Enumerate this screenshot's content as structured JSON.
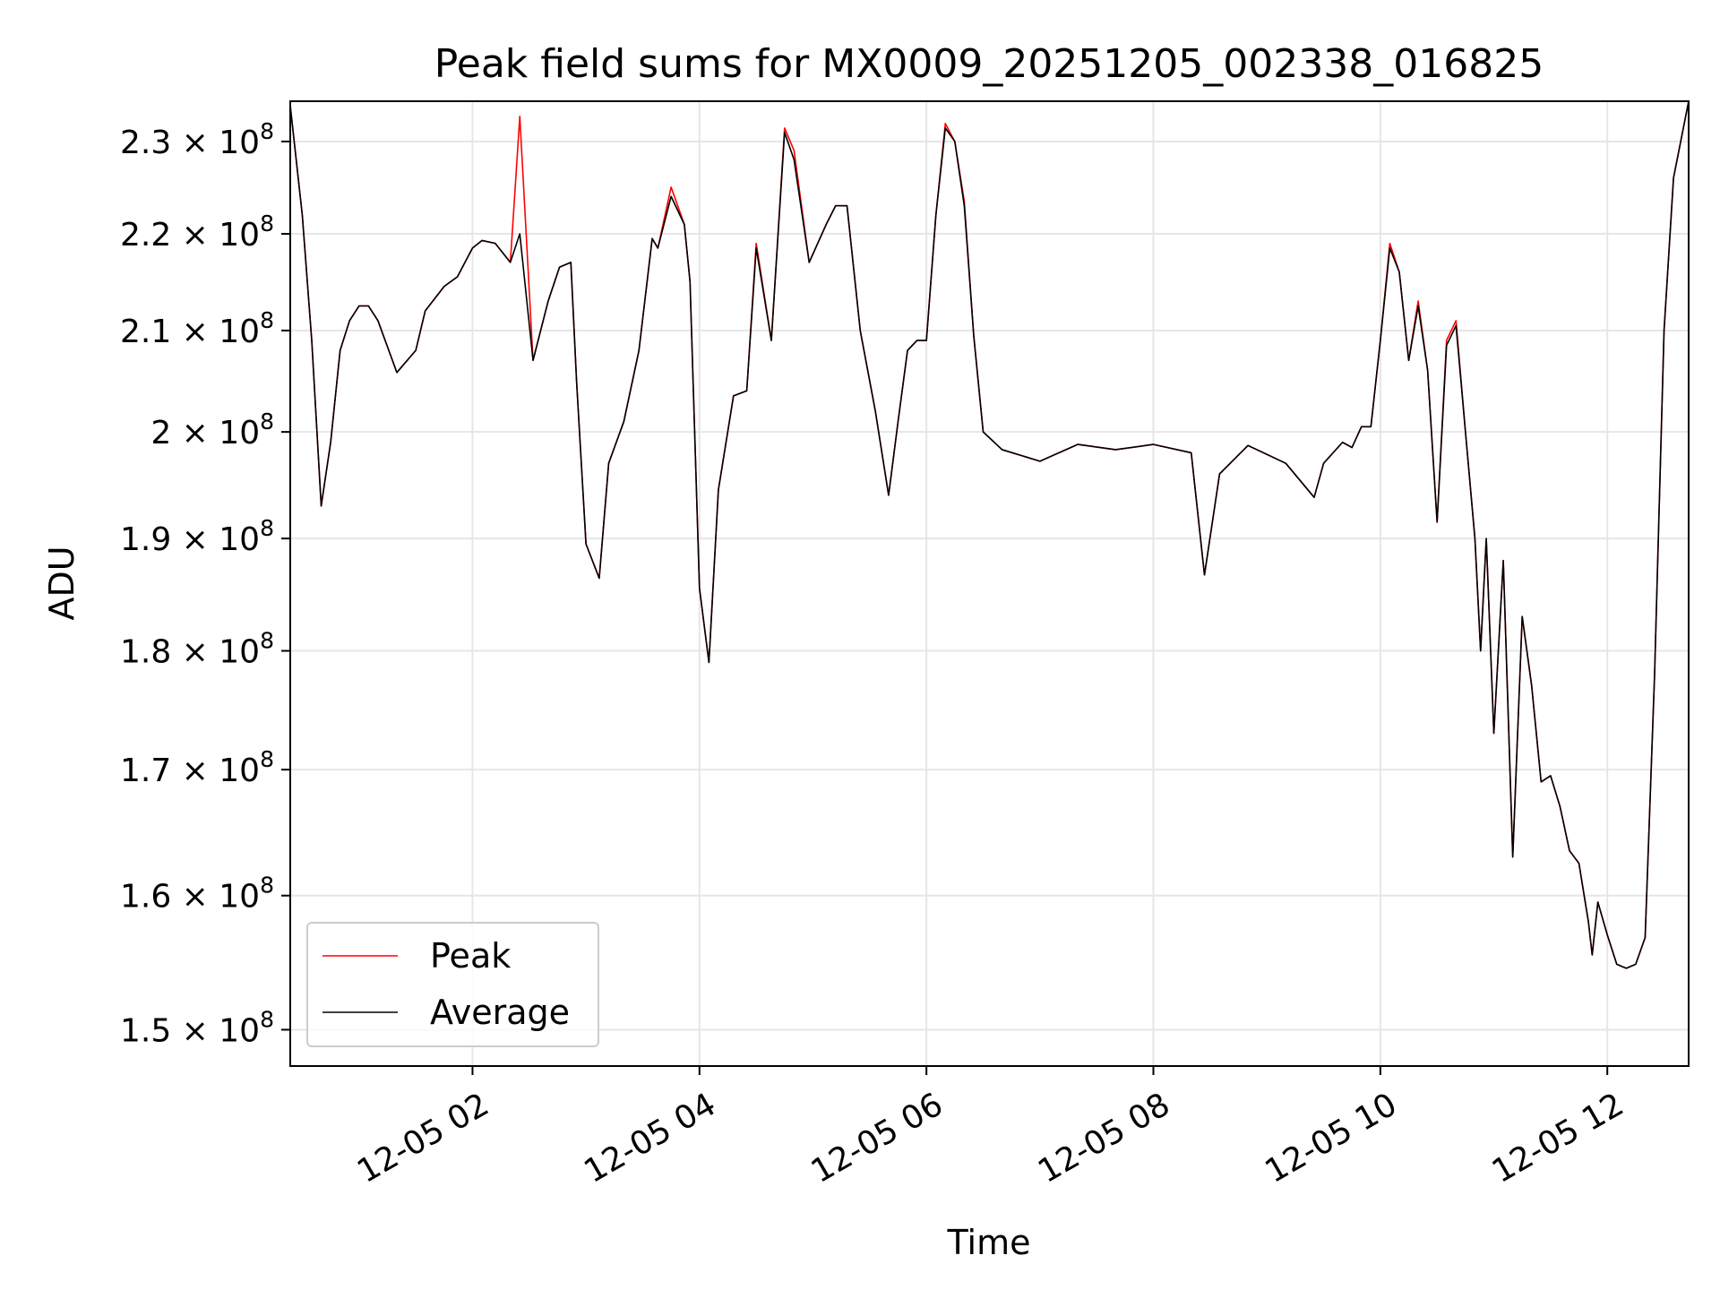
{
  "chart_data": {
    "type": "line",
    "title": "Peak field sums for MX0009_20251205_002338_016825",
    "xlabel": "Time",
    "ylabel": "ADU",
    "y_scale": "log",
    "ylim": [
      147400000.0,
      234500000.0
    ],
    "xlim": [
      "2025-12-05 00:23:38",
      "2025-12-05 12:43:00"
    ],
    "grid": true,
    "legend_position": "lower left",
    "x_ticks": [
      {
        "value": "2025-12-05 02:00",
        "label": "12-05 02"
      },
      {
        "value": "2025-12-05 04:00",
        "label": "12-05 04"
      },
      {
        "value": "2025-12-05 06:00",
        "label": "12-05 06"
      },
      {
        "value": "2025-12-05 08:00",
        "label": "12-05 08"
      },
      {
        "value": "2025-12-05 10:00",
        "label": "12-05 10"
      },
      {
        "value": "2025-12-05 12:00",
        "label": "12-05 12"
      }
    ],
    "y_ticks": [
      {
        "value": 150000000,
        "mantissa": "1.5"
      },
      {
        "value": 160000000,
        "mantissa": "1.6"
      },
      {
        "value": 170000000,
        "mantissa": "1.7"
      },
      {
        "value": 180000000,
        "mantissa": "1.8"
      },
      {
        "value": 190000000,
        "mantissa": "1.9"
      },
      {
        "value": 200000000,
        "mantissa": "2"
      },
      {
        "value": 210000000,
        "mantissa": "2.1"
      },
      {
        "value": 220000000,
        "mantissa": "2.2"
      },
      {
        "value": 230000000,
        "mantissa": "2.3"
      }
    ],
    "y_tick_base": "10",
    "y_tick_exponent": "8",
    "x": [
      "2025-12-05 00:23:38",
      "2025-12-05 00:30",
      "2025-12-05 00:35",
      "2025-12-05 00:40",
      "2025-12-05 00:45",
      "2025-12-05 00:50",
      "2025-12-05 00:55",
      "2025-12-05 01:00",
      "2025-12-05 01:05",
      "2025-12-05 01:10",
      "2025-12-05 01:20",
      "2025-12-05 01:30",
      "2025-12-05 01:35",
      "2025-12-05 01:45",
      "2025-12-05 01:52",
      "2025-12-05 02:00",
      "2025-12-05 02:05",
      "2025-12-05 02:12",
      "2025-12-05 02:20",
      "2025-12-05 02:25",
      "2025-12-05 02:32",
      "2025-12-05 02:40",
      "2025-12-05 02:46",
      "2025-12-05 02:52",
      "2025-12-05 02:55",
      "2025-12-05 03:00",
      "2025-12-05 03:07",
      "2025-12-05 03:12",
      "2025-12-05 03:20",
      "2025-12-05 03:28",
      "2025-12-05 03:35",
      "2025-12-05 03:38",
      "2025-12-05 03:45",
      "2025-12-05 03:52",
      "2025-12-05 03:55",
      "2025-12-05 04:00",
      "2025-12-05 04:05",
      "2025-12-05 04:10",
      "2025-12-05 04:18",
      "2025-12-05 04:25",
      "2025-12-05 04:30",
      "2025-12-05 04:38",
      "2025-12-05 04:45",
      "2025-12-05 04:50",
      "2025-12-05 04:58",
      "2025-12-05 05:07",
      "2025-12-05 05:12",
      "2025-12-05 05:18",
      "2025-12-05 05:25",
      "2025-12-05 05:33",
      "2025-12-05 05:40",
      "2025-12-05 05:45",
      "2025-12-05 05:50",
      "2025-12-05 05:55",
      "2025-12-05 06:00",
      "2025-12-05 06:05",
      "2025-12-05 06:10",
      "2025-12-05 06:15",
      "2025-12-05 06:20",
      "2025-12-05 06:25",
      "2025-12-05 06:30",
      "2025-12-05 06:40",
      "2025-12-05 07:00",
      "2025-12-05 07:20",
      "2025-12-05 07:40",
      "2025-12-05 08:00",
      "2025-12-05 08:20",
      "2025-12-05 08:27",
      "2025-12-05 08:35",
      "2025-12-05 08:50",
      "2025-12-05 09:10",
      "2025-12-05 09:25",
      "2025-12-05 09:30",
      "2025-12-05 09:40",
      "2025-12-05 09:45",
      "2025-12-05 09:50",
      "2025-12-05 09:55",
      "2025-12-05 10:00",
      "2025-12-05 10:05",
      "2025-12-05 10:10",
      "2025-12-05 10:15",
      "2025-12-05 10:20",
      "2025-12-05 10:25",
      "2025-12-05 10:30",
      "2025-12-05 10:35",
      "2025-12-05 10:40",
      "2025-12-05 10:45",
      "2025-12-05 10:50",
      "2025-12-05 10:53",
      "2025-12-05 10:56",
      "2025-12-05 11:00",
      "2025-12-05 11:05",
      "2025-12-05 11:10",
      "2025-12-05 11:15",
      "2025-12-05 11:20",
      "2025-12-05 11:25",
      "2025-12-05 11:30",
      "2025-12-05 11:35",
      "2025-12-05 11:40",
      "2025-12-05 11:45",
      "2025-12-05 11:50",
      "2025-12-05 11:52",
      "2025-12-05 11:55",
      "2025-12-05 12:00",
      "2025-12-05 12:05",
      "2025-12-05 12:10",
      "2025-12-05 12:15",
      "2025-12-05 12:20",
      "2025-12-05 12:25",
      "2025-12-05 12:30",
      "2025-12-05 12:35",
      "2025-12-05 12:43"
    ],
    "series": [
      {
        "name": "Peak",
        "color": "#ff0000",
        "values": [
          234000000,
          222000000,
          209000000,
          193000000,
          199000000,
          208000000,
          211000000,
          212500000,
          212500000,
          211000000,
          205800000,
          208000000,
          212000000,
          214500000,
          215500000,
          218500000,
          219300000,
          219000000,
          217000000,
          232800000,
          207000000,
          213000000,
          216500000,
          217000000,
          205000000,
          189500000,
          186400000,
          197000000,
          201000000,
          208000000,
          219500000,
          218500000,
          225000000,
          221000000,
          215000000,
          185500000,
          179000000,
          194500000,
          203500000,
          204000000,
          219000000,
          209000000,
          231500000,
          229000000,
          217000000,
          221000000,
          223000000,
          223000000,
          210000000,
          202000000,
          194000000,
          201000000,
          208000000,
          209000000,
          209000000,
          222000000,
          232000000,
          230000000,
          223500000,
          209500000,
          200000000,
          198300000,
          197200000,
          198800000,
          198300000,
          198800000,
          198000000,
          186700000,
          196000000,
          198700000,
          197000000,
          193800000,
          197000000,
          199000000,
          198500000,
          200500000,
          200500000,
          209000000,
          219000000,
          216000000,
          207000000,
          213000000,
          206000000,
          191500000,
          209000000,
          211000000,
          200000000,
          190000000,
          180000000,
          190000000,
          173000000,
          188000000,
          163000000,
          183000000,
          177000000,
          169000000,
          169500000,
          167000000,
          163500000,
          162500000,
          158000000,
          155500000,
          159500000,
          157000000,
          154800000,
          154500000,
          154800000,
          156800000,
          178000000,
          210000000,
          226000000,
          234500000
        ]
      },
      {
        "name": "Average",
        "color": "#000000",
        "values": [
          234000000,
          222000000,
          209000000,
          193000000,
          199000000,
          208000000,
          211000000,
          212500000,
          212500000,
          211000000,
          205800000,
          208000000,
          212000000,
          214500000,
          215500000,
          218500000,
          219300000,
          219000000,
          217000000,
          220000000,
          207000000,
          213000000,
          216500000,
          217000000,
          205000000,
          189500000,
          186400000,
          197000000,
          201000000,
          208000000,
          219500000,
          218500000,
          224000000,
          221000000,
          215000000,
          185500000,
          179000000,
          194500000,
          203500000,
          204000000,
          218500000,
          209000000,
          231000000,
          228000000,
          217000000,
          221000000,
          223000000,
          223000000,
          210000000,
          202000000,
          194000000,
          201000000,
          208000000,
          209000000,
          209000000,
          222000000,
          231500000,
          230000000,
          223000000,
          209500000,
          200000000,
          198300000,
          197200000,
          198800000,
          198300000,
          198800000,
          198000000,
          186700000,
          196000000,
          198700000,
          197000000,
          193800000,
          197000000,
          199000000,
          198500000,
          200500000,
          200500000,
          209000000,
          218500000,
          216000000,
          207000000,
          212500000,
          206000000,
          191500000,
          208500000,
          210500000,
          200000000,
          190000000,
          180000000,
          190000000,
          173000000,
          188000000,
          163000000,
          183000000,
          177000000,
          169000000,
          169500000,
          167000000,
          163500000,
          162500000,
          158000000,
          155500000,
          159500000,
          157000000,
          154800000,
          154500000,
          154800000,
          156800000,
          178000000,
          210000000,
          226000000,
          234500000
        ]
      }
    ]
  }
}
